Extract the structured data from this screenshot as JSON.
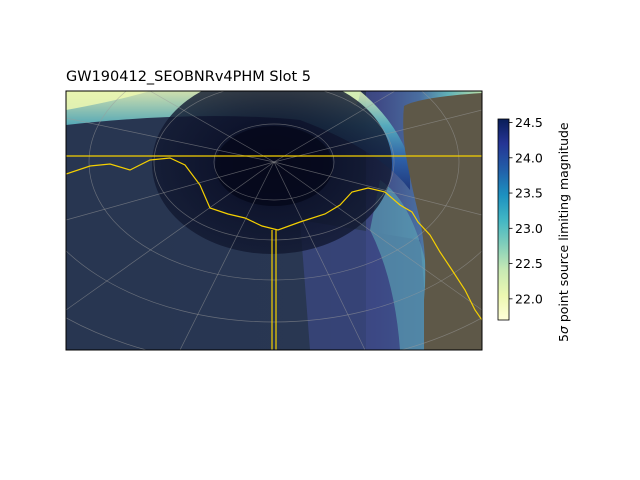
{
  "chart_data": {
    "type": "heatmap",
    "title": "GW190412_SEOBNRv4PHM Slot 5",
    "projection": "polar sky map",
    "grid": true,
    "colorbar": {
      "label": "5σ point source limiting magnitude",
      "label_symbol": "σ",
      "label_rest": " point source limiting magnitude",
      "label_prefix": "5",
      "colormap": "YlGnBu",
      "range": [
        21.7,
        24.55
      ],
      "ticks": [
        22.0,
        22.5,
        23.0,
        23.5,
        24.0,
        24.5
      ],
      "tick_labels": [
        "22.0",
        "22.5",
        "23.0",
        "23.5",
        "24.0",
        "24.5"
      ]
    },
    "overlays": [
      {
        "name": "horizon / boundary contour",
        "color": "#f5d000"
      },
      {
        "name": "moon exclusion region",
        "color": "#000000"
      },
      {
        "name": "unobservable region",
        "color": "#5e5848"
      }
    ]
  },
  "colors": {
    "background_fill": "#283650",
    "contour": "#f5d000",
    "unobservable": "#5e5848"
  }
}
